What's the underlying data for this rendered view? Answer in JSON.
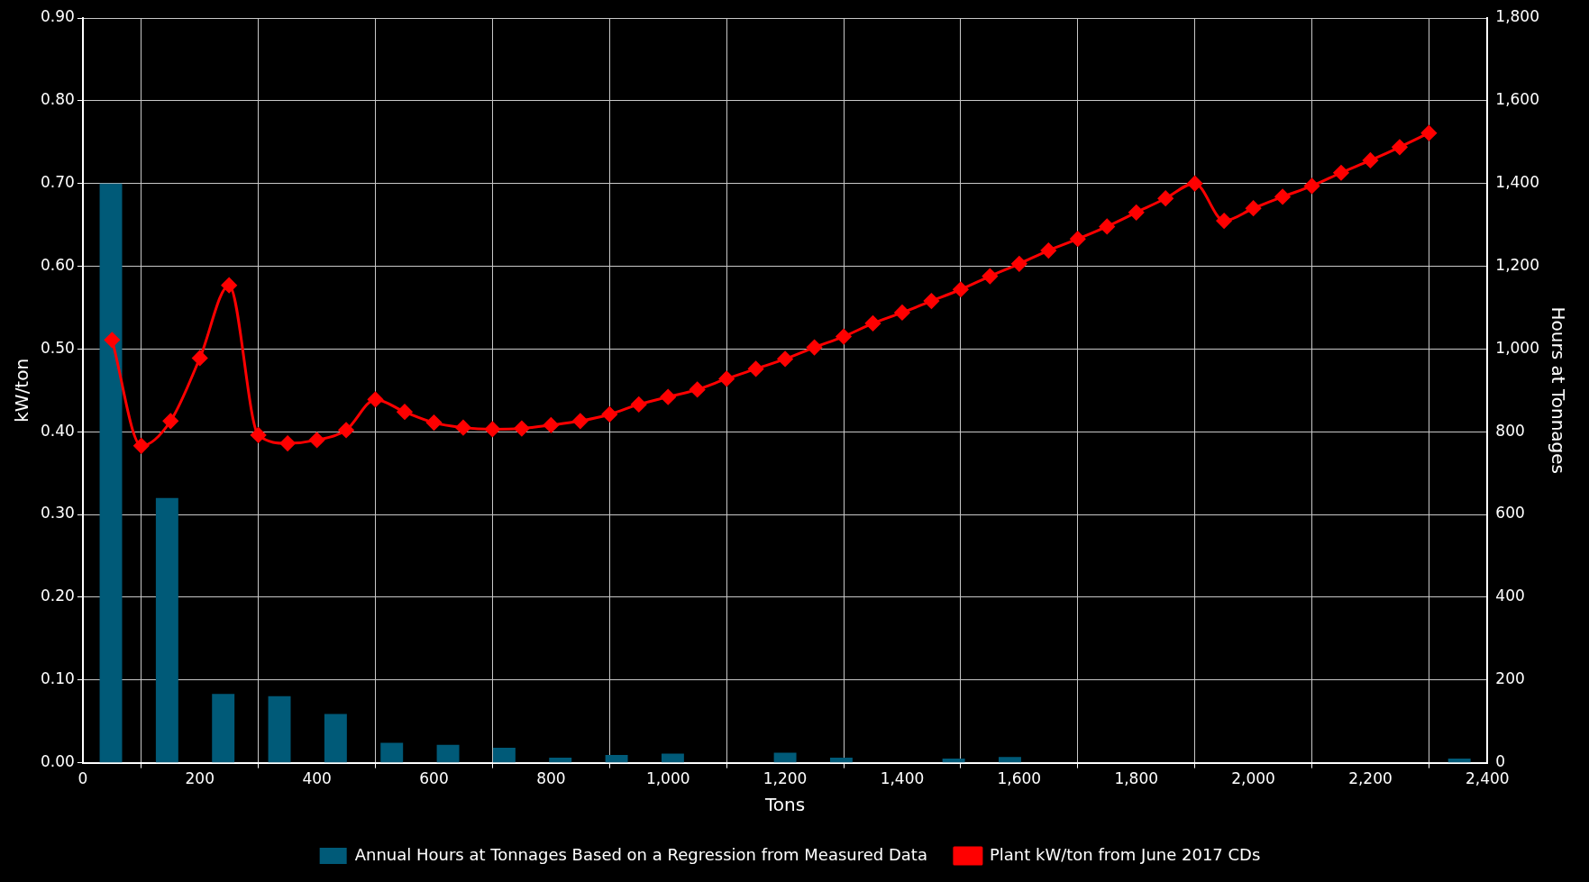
{
  "chart_data": {
    "type": "bar",
    "xlabel": "Tons",
    "ylabel": "kW/ton",
    "y2label": "Hours at Tonnages",
    "xlim": [
      0,
      2400
    ],
    "xticks": [
      0,
      200,
      400,
      600,
      800,
      {
        "value": 1000,
        "label": "1,000"
      },
      {
        "value": 1200,
        "label": "1,200"
      },
      {
        "value": 1400,
        "label": "1,400"
      },
      {
        "value": 1600,
        "label": "1,600"
      },
      {
        "value": 1800,
        "label": "1,800"
      },
      {
        "value": 2000,
        "label": "2,000"
      },
      {
        "value": 2200,
        "label": "2,200"
      },
      {
        "value": 2400,
        "label": "2,400"
      }
    ],
    "ylim": [
      0,
      0.9
    ],
    "yticks": [
      {
        "value": 0,
        "label": "0.00"
      },
      {
        "value": 0.1,
        "label": "0.10"
      },
      {
        "value": 0.2,
        "label": "0.20"
      },
      {
        "value": 0.3,
        "label": "0.30"
      },
      {
        "value": 0.4,
        "label": "0.40"
      },
      {
        "value": 0.5,
        "label": "0.50"
      },
      {
        "value": 0.6,
        "label": "0.60"
      },
      {
        "value": 0.7,
        "label": "0.70"
      },
      {
        "value": 0.8,
        "label": "0.80"
      },
      {
        "value": 0.9,
        "label": "0.90"
      }
    ],
    "y2lim": [
      0,
      1800
    ],
    "y2ticks": [
      0,
      200,
      400,
      600,
      800,
      {
        "value": 1000,
        "label": "1,000"
      },
      {
        "value": 1200,
        "label": "1,200"
      },
      {
        "value": 1400,
        "label": "1,400"
      },
      {
        "value": 1600,
        "label": "1,600"
      },
      {
        "value": 1800,
        "label": "1,800"
      }
    ],
    "grid": true,
    "legend": "bottom",
    "series": [
      {
        "name": "Annual Hours at Tonnages Based on a Regression from Measured Data",
        "axis": "y2",
        "color": "#005a78",
        "x": [
          48,
          144,
          240,
          336,
          432,
          528,
          624,
          720,
          816,
          912,
          1008,
          1104,
          1200,
          1296,
          1392,
          1488,
          1584,
          1680,
          1776,
          1872,
          1968,
          2064,
          2160,
          2256,
          2352
        ],
        "values": [
          1400,
          640,
          166,
          161,
          118,
          48,
          43,
          36,
          12,
          19,
          22,
          0,
          24,
          12,
          0,
          10,
          14,
          0,
          0,
          null,
          0,
          null,
          0,
          0,
          10
        ]
      },
      {
        "name": "Plant kW/ton from June 2017 CDs",
        "type": "line",
        "color": "#ff0000",
        "marker": "diamond",
        "x": [
          50,
          100,
          150,
          200,
          250,
          300,
          350,
          400,
          450,
          500,
          550,
          600,
          650,
          700,
          750,
          800,
          850,
          900,
          950,
          1000,
          1050,
          1100,
          1150,
          1200,
          1250,
          1300,
          1350,
          1400,
          1450,
          1500,
          1550,
          1600,
          1650,
          1700,
          1750,
          1800,
          1850,
          1900,
          1950,
          2000,
          2050,
          2100,
          2150,
          2200,
          2250,
          2300
        ],
        "values": [
          0.511,
          0.383,
          0.413,
          0.489,
          0.577,
          0.396,
          0.386,
          0.39,
          0.402,
          0.439,
          0.424,
          0.411,
          0.405,
          0.403,
          0.404,
          0.408,
          0.413,
          0.421,
          0.433,
          0.442,
          0.451,
          0.464,
          0.476,
          0.488,
          0.502,
          0.515,
          0.531,
          0.544,
          0.558,
          0.572,
          0.588,
          0.603,
          0.619,
          0.633,
          0.648,
          0.665,
          0.682,
          0.7,
          0.655,
          0.67,
          0.684,
          0.697,
          0.713,
          0.728,
          0.744,
          0.761
        ]
      }
    ]
  }
}
